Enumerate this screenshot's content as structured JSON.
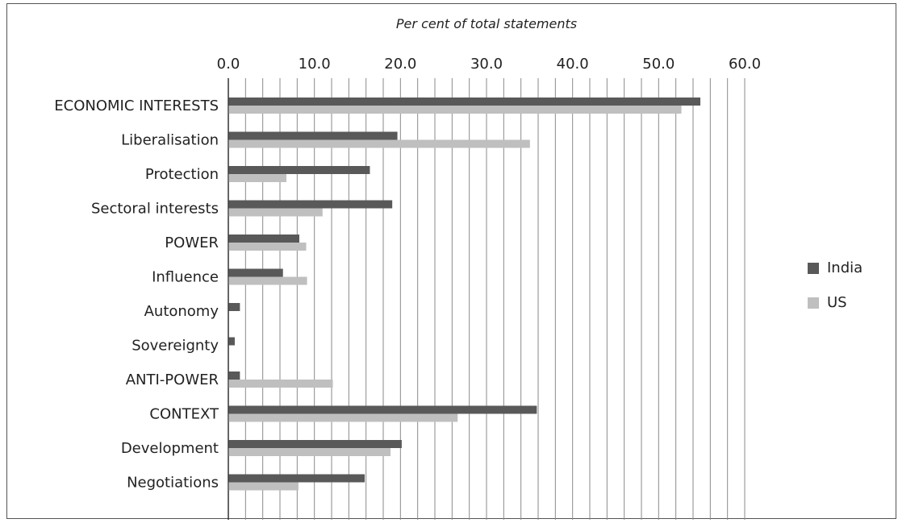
{
  "chart_data": {
    "type": "bar",
    "orientation": "horizontal",
    "title": "Per cent of total statements",
    "xlim": [
      0,
      60
    ],
    "major_ticks": [
      0,
      10,
      20,
      30,
      40,
      50,
      60
    ],
    "tick_labels": [
      "0.0",
      "10.0",
      "20.0",
      "30.0",
      "40.0",
      "50.0",
      "60.0"
    ],
    "minor_grid_step": 2,
    "grid": true,
    "axis_position": "top",
    "legend_position": "right",
    "categories": [
      "ECONOMIC INTERESTS",
      "Liberalisation",
      "Protection",
      "Sectoral interests",
      "POWER",
      "Influence",
      "Autonomy",
      "Sovereignty",
      "ANTI-POWER",
      "CONTEXT",
      "Development",
      "Negotiations"
    ],
    "category_emphasis": [
      true,
      false,
      false,
      false,
      true,
      false,
      false,
      false,
      true,
      true,
      false,
      false
    ],
    "series": [
      {
        "name": "India",
        "color": "#595959",
        "values": [
          54.8,
          19.6,
          16.4,
          19.0,
          8.2,
          6.3,
          1.3,
          0.7,
          1.3,
          35.8,
          20.1,
          15.8
        ]
      },
      {
        "name": "US",
        "color": "#bfbfbf",
        "values": [
          52.6,
          35.0,
          6.7,
          10.9,
          9.0,
          9.1,
          0,
          0,
          12.1,
          26.6,
          18.8,
          8.1
        ]
      }
    ]
  }
}
